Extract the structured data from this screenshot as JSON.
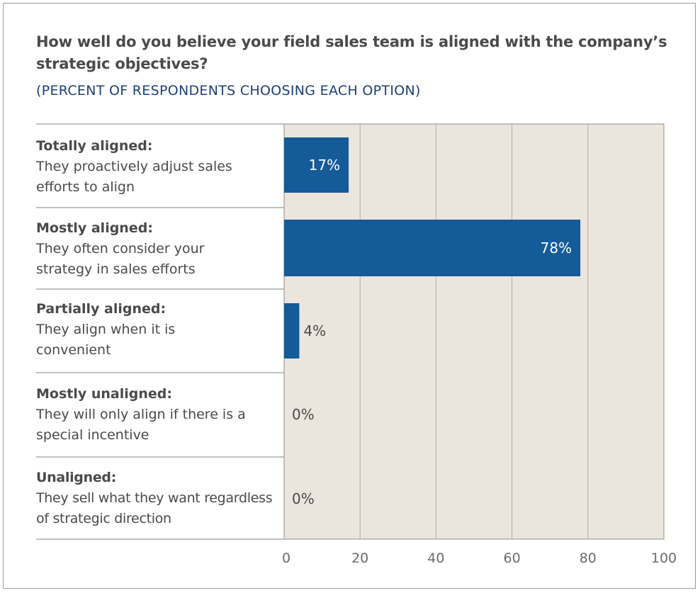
{
  "chart_data": {
    "type": "bar",
    "orientation": "horizontal",
    "title": "How well do you believe your field sales team is aligned with the company’s strategic objectives?",
    "subtitle": "(PERCENT OF RESPONDENTS CHOOSING EACH OPTION)",
    "categories": [
      {
        "heading": "Totally aligned:",
        "description": "They proactively adjust sales efforts to align"
      },
      {
        "heading": "Mostly aligned:",
        "description": "They often consider your strategy in sales efforts"
      },
      {
        "heading": "Partially aligned:",
        "description": "They align when it is convenient"
      },
      {
        "heading": "Mostly unaligned:",
        "description": "They will only align if there is a special incentive"
      },
      {
        "heading": "Unaligned:",
        "description": "They sell what they want regardless of strategic direction"
      }
    ],
    "values": [
      17,
      78,
      4,
      0,
      0
    ],
    "value_labels": [
      "17%",
      "78%",
      "4%",
      "0%",
      "0%"
    ],
    "xlim": [
      0,
      100
    ],
    "x_ticks": [
      "0",
      "20",
      "40",
      "60",
      "80",
      "100"
    ],
    "grid": true,
    "colors": {
      "bar": "#155a99",
      "plot_background": "#ebe5de",
      "gridline": "#b4aca3",
      "label_inside": "#ffffff",
      "label_outside": "#4a4a4a"
    }
  }
}
